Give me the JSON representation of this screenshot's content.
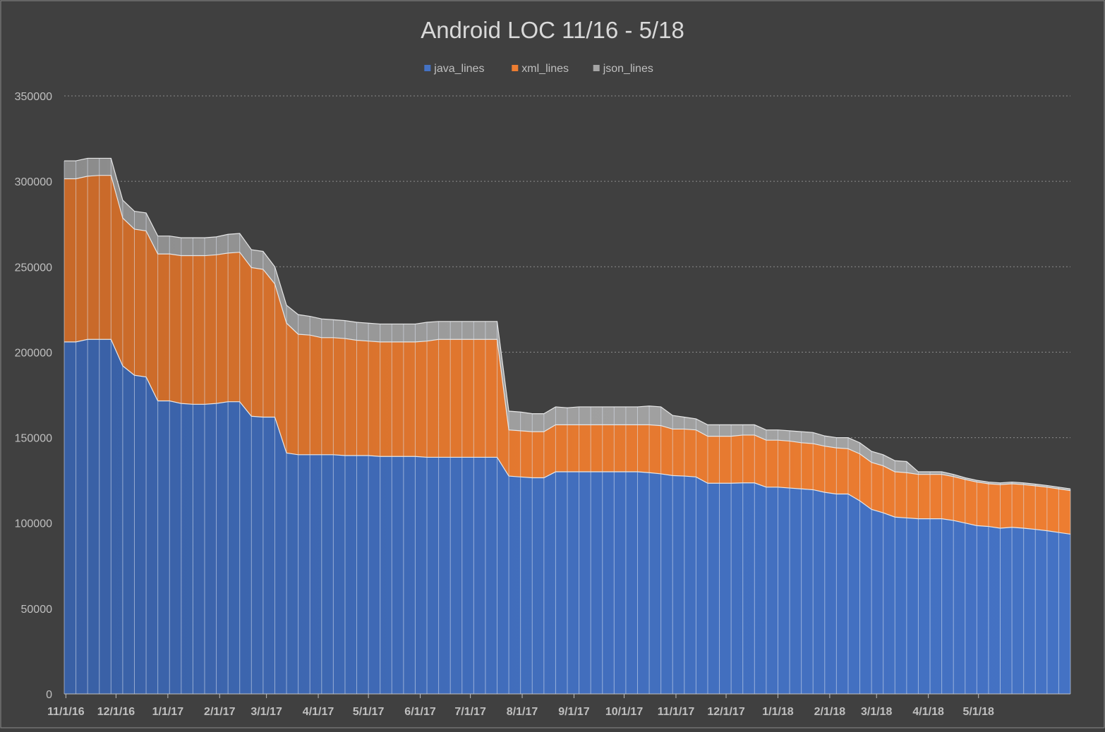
{
  "chart_data": {
    "type": "area",
    "stacked": true,
    "title": "Android LOC 11/16 - 5/18",
    "xlabel": "",
    "ylabel": "",
    "ylim": [
      0,
      350000
    ],
    "yticks": [
      0,
      50000,
      100000,
      150000,
      200000,
      250000,
      300000,
      350000
    ],
    "y_tick_labels": [
      "0",
      "50000",
      "100000",
      "150000",
      "200000",
      "250000",
      "300000",
      "350000"
    ],
    "grid": "horizontal dotted",
    "legend_position": "top-center",
    "x_start": "2016-10-31",
    "x_step_days": 7,
    "x_ticks": [
      {
        "label": "11/1/16",
        "date": "2016-11-01"
      },
      {
        "label": "12/1/16",
        "date": "2016-12-01"
      },
      {
        "label": "1/1/17",
        "date": "2017-01-01"
      },
      {
        "label": "2/1/17",
        "date": "2017-02-01"
      },
      {
        "label": "3/1/17",
        "date": "2017-03-01"
      },
      {
        "label": "4/1/17",
        "date": "2017-04-01"
      },
      {
        "label": "5/1/17",
        "date": "2017-05-01"
      },
      {
        "label": "6/1/17",
        "date": "2017-06-01"
      },
      {
        "label": "7/1/17",
        "date": "2017-07-01"
      },
      {
        "label": "8/1/17",
        "date": "2017-08-01"
      },
      {
        "label": "9/1/17",
        "date": "2017-09-01"
      },
      {
        "label": "10/1/17",
        "date": "2017-10-01"
      },
      {
        "label": "11/1/17",
        "date": "2017-11-01"
      },
      {
        "label": "12/1/17",
        "date": "2017-12-01"
      },
      {
        "label": "1/1/18",
        "date": "2018-01-01"
      },
      {
        "label": "2/1/18",
        "date": "2018-02-01"
      },
      {
        "label": "3/1/18",
        "date": "2018-03-01"
      },
      {
        "label": "4/1/18",
        "date": "2018-04-01"
      },
      {
        "label": "5/1/18",
        "date": "2018-05-01"
      }
    ],
    "series": [
      {
        "name": "java_lines",
        "color": "#4472c4",
        "values": [
          206000,
          206000,
          207500,
          207500,
          207500,
          192000,
          186500,
          185500,
          171500,
          171500,
          170000,
          169500,
          169500,
          170000,
          171000,
          171000,
          162500,
          162000,
          162000,
          141000,
          140000,
          140000,
          140000,
          140000,
          139500,
          139500,
          139500,
          139000,
          139000,
          139000,
          139000,
          138500,
          138500,
          138500,
          138500,
          138500,
          138500,
          138500,
          127500,
          127000,
          126500,
          126500,
          130000,
          130000,
          130000,
          130000,
          130000,
          130000,
          130000,
          130000,
          129500,
          128800,
          127800,
          127500,
          127000,
          123300,
          123300,
          123300,
          123500,
          123500,
          121000,
          121000,
          120500,
          120000,
          119500,
          118000,
          117000,
          117000,
          113000,
          108000,
          106000,
          103500,
          103000,
          102500,
          102500,
          102500,
          101500,
          100000,
          98500,
          98000,
          97000,
          97500,
          97000,
          96300,
          95500,
          94500,
          93500
        ]
      },
      {
        "name": "xml_lines",
        "color": "#ed7d31",
        "values": [
          95500,
          95500,
          95500,
          96000,
          96000,
          86500,
          85500,
          85500,
          86000,
          86000,
          86500,
          87000,
          87000,
          87000,
          87000,
          87500,
          87000,
          86500,
          78000,
          76000,
          70500,
          70000,
          68500,
          68500,
          68500,
          67500,
          67000,
          67000,
          67000,
          67000,
          67000,
          68000,
          69000,
          69000,
          69000,
          69000,
          69000,
          69000,
          27000,
          27000,
          27000,
          27000,
          27500,
          27500,
          27500,
          27500,
          27500,
          27500,
          27500,
          27500,
          28000,
          28200,
          27200,
          27500,
          27500,
          27500,
          27500,
          27500,
          28000,
          28000,
          27500,
          27500,
          27500,
          27000,
          27000,
          27000,
          27000,
          26500,
          27500,
          27500,
          27500,
          26500,
          26500,
          26000,
          26000,
          26000,
          25700,
          25500,
          25500,
          25000,
          25500,
          25500,
          25500,
          25500,
          25500,
          25500,
          25500
        ]
      },
      {
        "name": "json_lines",
        "color": "#a5a5a5",
        "values": [
          10500,
          10500,
          10500,
          10000,
          10000,
          10500,
          10500,
          10500,
          10500,
          10500,
          10500,
          10500,
          10500,
          10500,
          11000,
          11000,
          10500,
          10500,
          10000,
          10500,
          11500,
          11000,
          11000,
          10500,
          10500,
          10500,
          10500,
          10500,
          10500,
          10500,
          10500,
          11000,
          10500,
          10500,
          10500,
          10500,
          10500,
          10500,
          11000,
          11000,
          10500,
          10500,
          10500,
          10000,
          10500,
          10500,
          10500,
          10500,
          10500,
          10500,
          11000,
          11000,
          8000,
          7000,
          6500,
          6700,
          6700,
          6700,
          6000,
          6000,
          6000,
          6000,
          6000,
          6500,
          6500,
          6000,
          6000,
          6500,
          6500,
          6500,
          6500,
          6500,
          6500,
          1500,
          1500,
          1500,
          1300,
          1000,
          1000,
          1000,
          1000,
          1000,
          1000,
          1000,
          1000,
          1000,
          1000
        ]
      }
    ]
  }
}
